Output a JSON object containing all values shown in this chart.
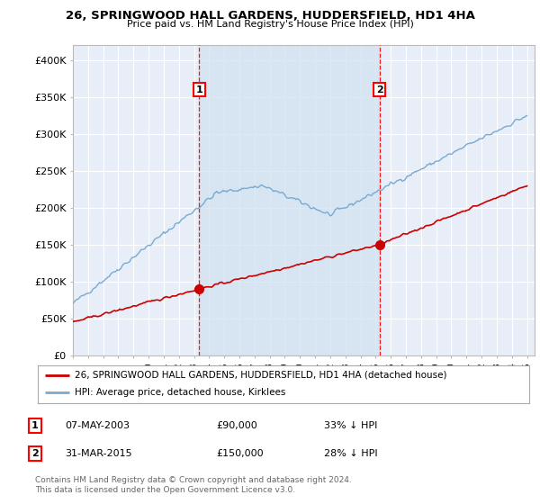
{
  "title": "26, SPRINGWOOD HALL GARDENS, HUDDERSFIELD, HD1 4HA",
  "subtitle": "Price paid vs. HM Land Registry's House Price Index (HPI)",
  "xlim_start": 1995.0,
  "xlim_end": 2025.5,
  "ylim_min": 0,
  "ylim_max": 420000,
  "yticks": [
    0,
    50000,
    100000,
    150000,
    200000,
    250000,
    300000,
    350000,
    400000
  ],
  "ytick_labels": [
    "£0",
    "£50K",
    "£100K",
    "£150K",
    "£200K",
    "£250K",
    "£300K",
    "£350K",
    "£400K"
  ],
  "background_color": "#ffffff",
  "plot_bg_color": "#e8eef8",
  "grid_color": "#ffffff",
  "hpi_line_color": "#7aaad0",
  "price_line_color": "#cc0000",
  "shade_color": "#d0e0f0",
  "sale1_x": 2003.35,
  "sale1_y": 90000,
  "sale1_label": "1",
  "sale1_date": "07-MAY-2003",
  "sale1_price": "£90,000",
  "sale1_hpi": "33% ↓ HPI",
  "sale2_x": 2015.25,
  "sale2_y": 150000,
  "sale2_label": "2",
  "sale2_date": "31-MAR-2015",
  "sale2_price": "£150,000",
  "sale2_hpi": "28% ↓ HPI",
  "legend_line1": "26, SPRINGWOOD HALL GARDENS, HUDDERSFIELD, HD1 4HA (detached house)",
  "legend_line2": "HPI: Average price, detached house, Kirklees",
  "footer1": "Contains HM Land Registry data © Crown copyright and database right 2024.",
  "footer2": "This data is licensed under the Open Government Licence v3.0."
}
